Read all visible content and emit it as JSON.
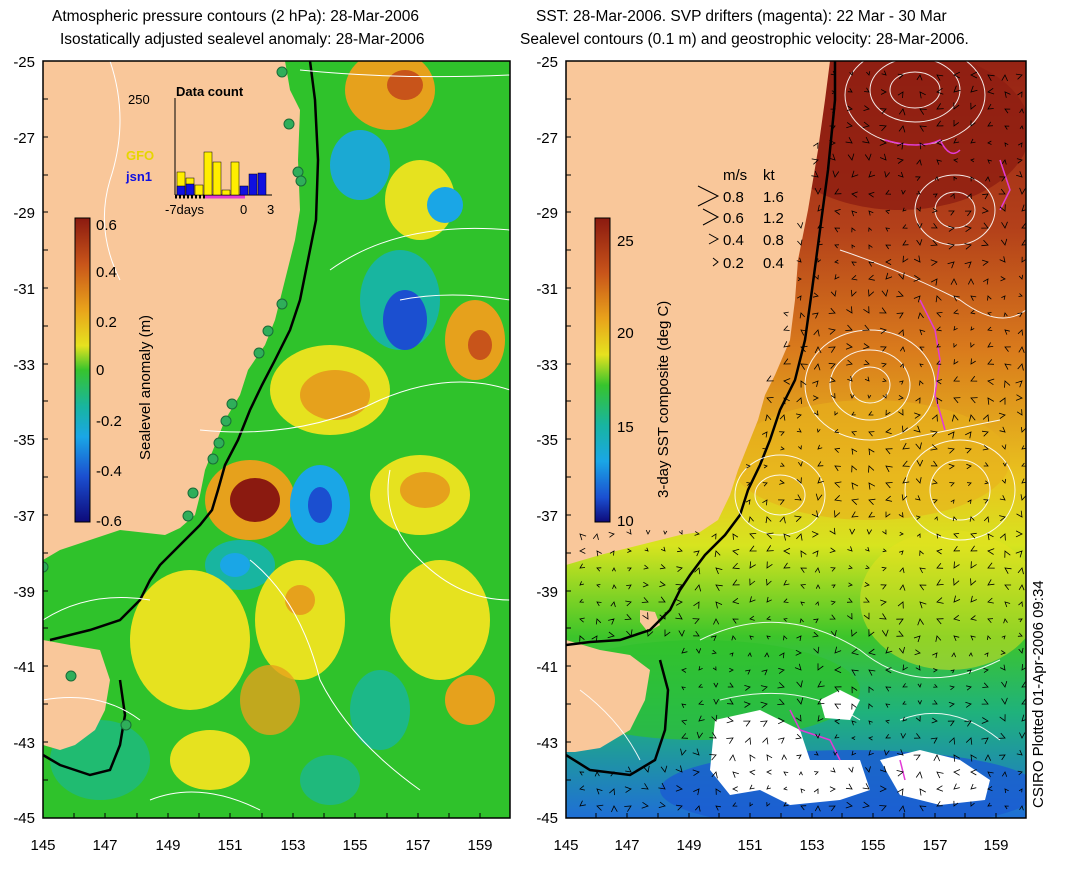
{
  "left_panel": {
    "title_line1": "Atmospheric pressure contours (2 hPa): 28-Mar-2006",
    "title_line2": "Isostatically adjusted sealevel anomaly: 28-Mar-2006",
    "colorbar": {
      "label": "Sealevel anomaly (m)",
      "ticks": [
        "0.6",
        "0.4",
        "0.2",
        "0",
        "-0.2",
        "-0.4",
        "-0.6"
      ]
    },
    "inset": {
      "title": "Data count",
      "ymax_label": "250",
      "legend_gfo": "GFO",
      "legend_jsn1": "jsn1",
      "x_labels": [
        "-7days",
        "0",
        "3"
      ]
    }
  },
  "right_panel": {
    "title_line1": "SST: 28-Mar-2006. SVP drifters (magenta): 22 Mar - 30 Mar",
    "title_line2": "Sealevel contours (0.1 m) and geostrophic velocity: 28-Mar-2006.",
    "colorbar": {
      "label": "3-day SST composite (deg C)",
      "ticks": [
        "25",
        "20",
        "15",
        "10"
      ]
    },
    "velocity_legend": {
      "header_ms": "m/s",
      "header_kt": "kt",
      "rows": [
        {
          "ms": "0.8",
          "kt": "1.6"
        },
        {
          "ms": "0.6",
          "kt": "1.2"
        },
        {
          "ms": "0.4",
          "kt": "0.8"
        },
        {
          "ms": "0.2",
          "kt": "0.4"
        }
      ]
    }
  },
  "axes": {
    "y_labels": [
      "-25",
      "-27",
      "-29",
      "-31",
      "-33",
      "-35",
      "-37",
      "-39",
      "-41",
      "-43",
      "-45"
    ],
    "x_labels": [
      "145",
      "147",
      "149",
      "151",
      "153",
      "155",
      "157",
      "159"
    ]
  },
  "credit": "CSIRO Plotted 01-Apr-2006 09:34",
  "colors": {
    "land": "#f9c79a",
    "sea_base": "#2fc22b",
    "drifter": "#e23bd6",
    "tide_gauge": "#2fae5a"
  }
}
